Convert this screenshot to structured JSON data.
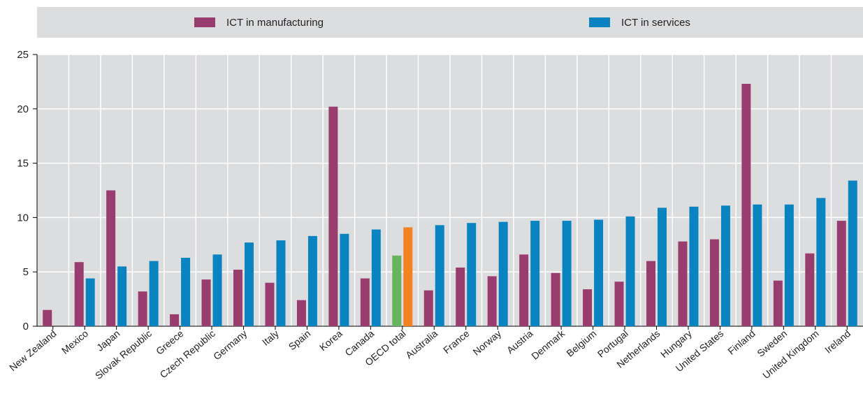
{
  "chart_data": {
    "type": "bar",
    "categories": [
      "New Zealand",
      "Mexico",
      "Japan",
      "Slovak Republic",
      "Greece",
      "Czech Republic",
      "Germany",
      "Italy",
      "Spain",
      "Korea",
      "Canada",
      "OECD total",
      "Australia",
      "France",
      "Norway",
      "Austria",
      "Denmark",
      "Belgium",
      "Portugal",
      "Netherlands",
      "Hungary",
      "United States",
      "Finland",
      "Sweden",
      "United Kingdom",
      "Ireland"
    ],
    "series": [
      {
        "name": "ICT in manufacturing",
        "color": "#993d6e",
        "values": [
          1.5,
          5.9,
          12.5,
          3.2,
          1.1,
          4.3,
          5.2,
          4.0,
          2.4,
          20.2,
          4.4,
          6.5,
          3.3,
          5.4,
          4.6,
          6.6,
          4.9,
          3.4,
          4.1,
          6.0,
          7.8,
          8.0,
          22.3,
          4.2,
          6.7,
          9.7
        ]
      },
      {
        "name": "ICT in services",
        "color": "#0a84c1",
        "values": [
          0,
          4.4,
          5.5,
          6.0,
          6.3,
          6.6,
          7.7,
          7.9,
          8.3,
          8.5,
          8.9,
          9.1,
          9.3,
          9.5,
          9.6,
          9.7,
          9.7,
          9.8,
          10.1,
          10.9,
          11.0,
          11.1,
          11.2,
          11.2,
          11.8,
          13.4
        ]
      }
    ],
    "highlight": {
      "category": "OECD total",
      "colors": [
        "#66b55e",
        "#f58220"
      ]
    },
    "ylim": [
      0,
      25
    ],
    "yticks": [
      0,
      5,
      10,
      15,
      20,
      25
    ],
    "title": "",
    "xlabel": "",
    "ylabel": "",
    "grid": true,
    "legend_position": "top",
    "plot_background": "#dcdddf"
  },
  "legend": {
    "items": [
      {
        "label": "ICT in manufacturing",
        "color": "#993d6e"
      },
      {
        "label": "ICT in services",
        "color": "#0a84c1"
      }
    ]
  }
}
